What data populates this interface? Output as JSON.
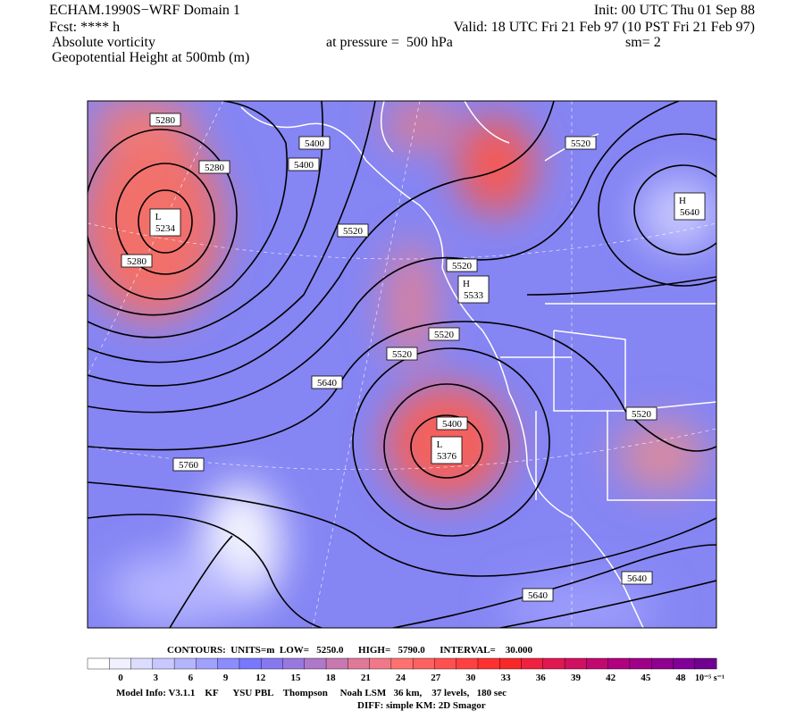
{
  "header": {
    "title": "ECHAM.1990S−WRF Domain 1",
    "forecast": "Fcst: **** h",
    "field": "Absolute vorticity",
    "contour_field": "Geopotential Height at 500mb (m)",
    "init": "Init: 00 UTC Thu 01 Sep 88",
    "valid": "Valid: 18 UTC Fri 21 Feb 97 (10 PST Fri 21 Feb 97)",
    "pressure": "at pressure =  500 hPa",
    "smoothing": "sm= 2"
  },
  "map": {
    "labels": [
      {
        "text": "5280"
      },
      {
        "text": "5280"
      },
      {
        "text": "5400"
      },
      {
        "text": "5400"
      },
      {
        "marker": "L",
        "text": "5234"
      },
      {
        "text": "5280"
      },
      {
        "text": "5520"
      },
      {
        "text": "5520"
      },
      {
        "marker": "H",
        "text": "5640"
      },
      {
        "text": "5520"
      },
      {
        "marker": "H",
        "text": "5533"
      },
      {
        "text": "5520"
      },
      {
        "text": "5520"
      },
      {
        "text": "5640"
      },
      {
        "text": "5400"
      },
      {
        "marker": "L",
        "text": "5376"
      },
      {
        "text": "5520"
      },
      {
        "text": "5760"
      },
      {
        "text": "5640"
      },
      {
        "text": "5640"
      }
    ]
  },
  "colorbar": {
    "ticks": [
      0,
      3,
      6,
      9,
      12,
      15,
      18,
      21,
      24,
      27,
      30,
      33,
      36,
      39,
      42,
      45,
      48
    ],
    "units": "10⁻⁵ s⁻¹"
  },
  "footer": {
    "contours": "CONTOURS:  UNITS=m  LOW=   5250.0      HIGH=   5790.0      INTERVAL=    30.000",
    "model_info": "Model Info: V3.1.1    KF      YSU PBL    Thompson     Noah LSM   36 km,    37 levels,   180 sec",
    "diff": "DIFF: simple KM: 2D Smagor"
  }
}
